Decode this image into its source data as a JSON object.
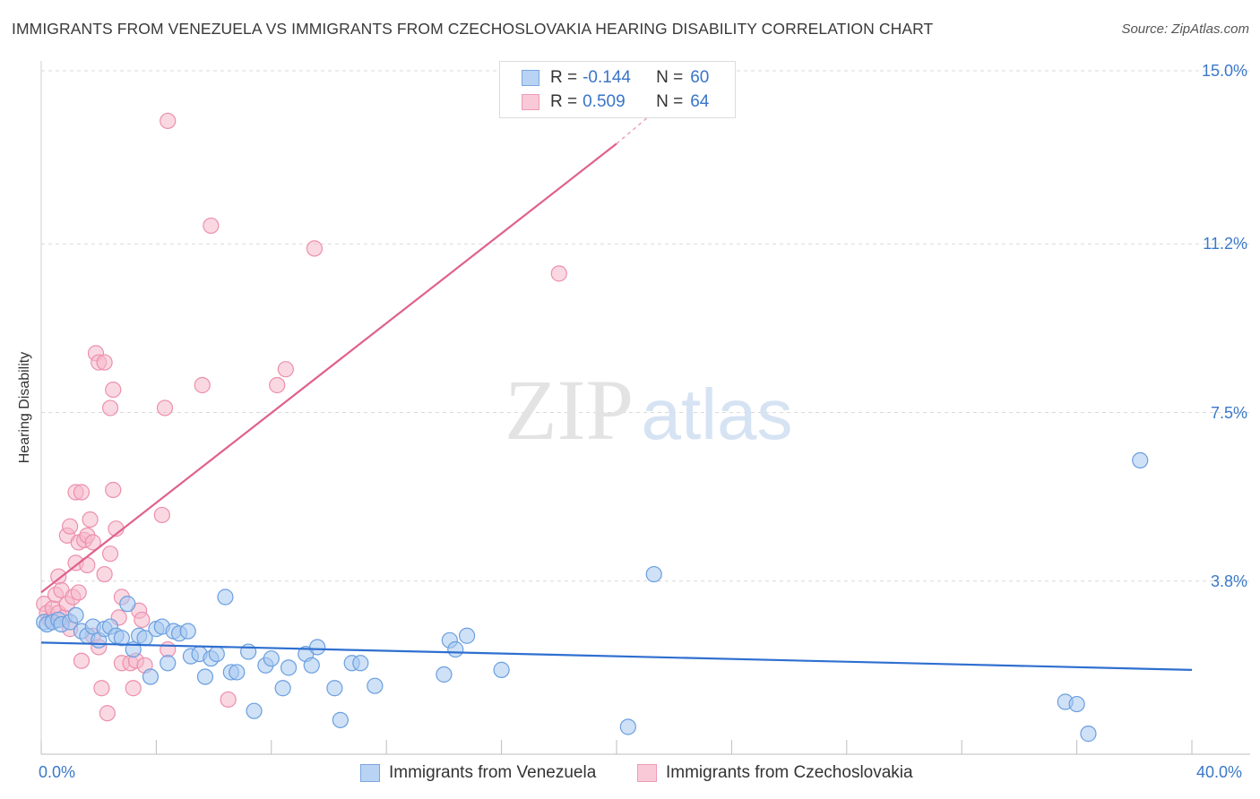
{
  "header": {
    "title": "IMMIGRANTS FROM VENEZUELA VS IMMIGRANTS FROM CZECHOSLOVAKIA HEARING DISABILITY CORRELATION CHART",
    "source": "Source: ZipAtlas.com"
  },
  "legend": {
    "rows": [
      {
        "r_label": "R =",
        "r_value": "-0.144",
        "n_label": "N =",
        "n_value": "60"
      },
      {
        "r_label": "R =",
        "r_value": "0.509",
        "n_label": "N =",
        "n_value": "64"
      }
    ]
  },
  "colors": {
    "venezuela_fill": "#a8c8f0",
    "venezuela_stroke": "#6a9fdf",
    "venezuela_line": "#2f6fd0",
    "czech_fill": "#f5b8cb",
    "czech_stroke": "#ec8fae",
    "czech_line": "#e0608c",
    "axis_text": "#3a78c9"
  },
  "watermark": {
    "zip": "ZIP",
    "atlas": "atlas"
  },
  "chart_data": {
    "type": "scatter",
    "title": "IMMIGRANTS FROM VENEZUELA VS IMMIGRANTS FROM CZECHOSLOVAKIA HEARING DISABILITY CORRELATION CHART",
    "xlabel": "",
    "ylabel": "Hearing Disability",
    "xlim": [
      0,
      40
    ],
    "ylim": [
      0,
      15.5
    ],
    "x_tick_labels": [
      "0.0%",
      "40.0%"
    ],
    "y_ticks": [
      {
        "value": 3.8,
        "label": "3.8%"
      },
      {
        "value": 7.5,
        "label": "7.5%"
      },
      {
        "value": 11.2,
        "label": "11.2%"
      },
      {
        "value": 15.0,
        "label": "15.0%"
      }
    ],
    "legend_position": "bottom",
    "series": [
      {
        "name": "Immigrants from Venezuela",
        "r": -0.144,
        "n": 60,
        "trend": {
          "x": [
            0,
            40
          ],
          "y": [
            2.45,
            1.85
          ]
        },
        "points": [
          [
            0.1,
            2.9
          ],
          [
            0.2,
            2.85
          ],
          [
            0.4,
            2.9
          ],
          [
            0.6,
            2.95
          ],
          [
            0.7,
            2.85
          ],
          [
            1.0,
            2.9
          ],
          [
            1.2,
            3.05
          ],
          [
            1.4,
            2.7
          ],
          [
            1.6,
            2.6
          ],
          [
            1.8,
            2.8
          ],
          [
            2.0,
            2.5
          ],
          [
            2.2,
            2.75
          ],
          [
            2.4,
            2.8
          ],
          [
            2.6,
            2.6
          ],
          [
            2.8,
            2.55
          ],
          [
            3.0,
            3.3
          ],
          [
            3.2,
            2.3
          ],
          [
            3.4,
            2.6
          ],
          [
            3.6,
            2.55
          ],
          [
            3.8,
            1.7
          ],
          [
            4.0,
            2.75
          ],
          [
            4.2,
            2.8
          ],
          [
            4.4,
            2.0
          ],
          [
            4.6,
            2.7
          ],
          [
            4.8,
            2.65
          ],
          [
            5.1,
            2.7
          ],
          [
            5.2,
            2.15
          ],
          [
            5.5,
            2.2
          ],
          [
            5.7,
            1.7
          ],
          [
            5.9,
            2.1
          ],
          [
            6.1,
            2.2
          ],
          [
            6.4,
            3.45
          ],
          [
            6.6,
            1.8
          ],
          [
            6.8,
            1.8
          ],
          [
            7.2,
            2.25
          ],
          [
            7.4,
            0.95
          ],
          [
            7.8,
            1.95
          ],
          [
            8.0,
            2.1
          ],
          [
            8.4,
            1.45
          ],
          [
            8.6,
            1.9
          ],
          [
            9.2,
            2.2
          ],
          [
            9.4,
            1.95
          ],
          [
            9.6,
            2.35
          ],
          [
            10.2,
            1.45
          ],
          [
            10.4,
            0.75
          ],
          [
            10.8,
            2.0
          ],
          [
            11.1,
            2.0
          ],
          [
            11.6,
            1.5
          ],
          [
            14.0,
            1.75
          ],
          [
            14.2,
            2.5
          ],
          [
            14.4,
            2.3
          ],
          [
            14.8,
            2.6
          ],
          [
            16.0,
            1.85
          ],
          [
            20.4,
            0.6
          ],
          [
            21.3,
            3.95
          ],
          [
            35.6,
            1.15
          ],
          [
            36.0,
            1.1
          ],
          [
            36.4,
            0.45
          ],
          [
            38.2,
            6.45
          ]
        ]
      },
      {
        "name": "Immigrants from Czechoslovakia",
        "r": 0.509,
        "n": 64,
        "trend": {
          "x": [
            0,
            20.0,
            21.5
          ],
          "y": [
            3.55,
            13.4,
            14.2
          ]
        },
        "points": [
          [
            0.1,
            3.3
          ],
          [
            0.2,
            3.1
          ],
          [
            0.3,
            2.95
          ],
          [
            0.4,
            3.2
          ],
          [
            0.5,
            3.5
          ],
          [
            0.6,
            3.1
          ],
          [
            0.6,
            3.9
          ],
          [
            0.7,
            3.6
          ],
          [
            0.8,
            3.0
          ],
          [
            0.9,
            3.3
          ],
          [
            0.9,
            4.8
          ],
          [
            1.0,
            2.75
          ],
          [
            1.0,
            5.0
          ],
          [
            1.1,
            3.45
          ],
          [
            1.2,
            4.2
          ],
          [
            1.2,
            5.75
          ],
          [
            1.3,
            3.55
          ],
          [
            1.3,
            4.65
          ],
          [
            1.4,
            5.75
          ],
          [
            1.4,
            2.05
          ],
          [
            1.5,
            4.7
          ],
          [
            1.6,
            4.8
          ],
          [
            1.6,
            4.15
          ],
          [
            1.7,
            5.15
          ],
          [
            1.8,
            2.6
          ],
          [
            1.8,
            4.65
          ],
          [
            1.9,
            8.8
          ],
          [
            2.0,
            8.6
          ],
          [
            2.0,
            2.35
          ],
          [
            2.1,
            1.45
          ],
          [
            2.2,
            8.6
          ],
          [
            2.2,
            3.95
          ],
          [
            2.3,
            0.9
          ],
          [
            2.4,
            4.4
          ],
          [
            2.4,
            7.6
          ],
          [
            2.5,
            5.8
          ],
          [
            2.5,
            8.0
          ],
          [
            2.6,
            4.95
          ],
          [
            2.7,
            3.0
          ],
          [
            2.8,
            2.0
          ],
          [
            2.8,
            3.45
          ],
          [
            3.1,
            2.0
          ],
          [
            3.2,
            1.45
          ],
          [
            3.3,
            2.05
          ],
          [
            3.4,
            3.15
          ],
          [
            3.5,
            2.95
          ],
          [
            3.6,
            1.95
          ],
          [
            4.2,
            5.25
          ],
          [
            4.3,
            7.6
          ],
          [
            4.4,
            2.3
          ],
          [
            4.4,
            13.9
          ],
          [
            5.6,
            8.1
          ],
          [
            5.9,
            11.6
          ],
          [
            6.5,
            1.2
          ],
          [
            8.2,
            8.1
          ],
          [
            8.5,
            8.45
          ],
          [
            9.5,
            11.1
          ],
          [
            18.0,
            10.55
          ]
        ]
      }
    ]
  },
  "bottom_legend": {
    "venezuela": "Immigrants from Venezuela",
    "czech": "Immigrants from Czechoslovakia"
  }
}
